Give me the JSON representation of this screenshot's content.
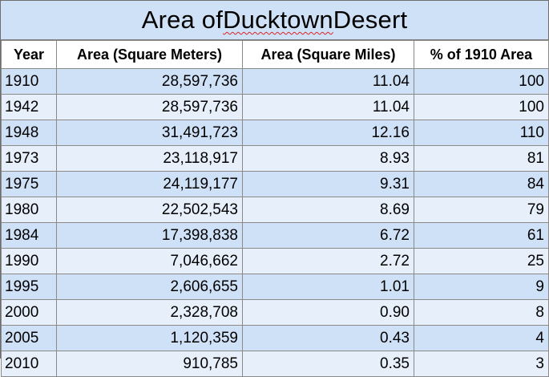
{
  "title_prefix": "Area of ",
  "title_squiggle": "Ducktown",
  "title_suffix": " Desert",
  "columns": [
    "Year",
    "Area (Square Meters)",
    "Area (Square Miles)",
    "% of 1910 Area"
  ],
  "rows": [
    [
      "1910",
      "28,597,736",
      "11.04",
      "100"
    ],
    [
      "1942",
      "28,597,736",
      "11.04",
      "100"
    ],
    [
      "1948",
      "31,491,723",
      "12.16",
      "110"
    ],
    [
      "1973",
      "23,118,917",
      "8.93",
      "81"
    ],
    [
      "1975",
      "24,119,177",
      "9.31",
      "84"
    ],
    [
      "1980",
      "22,502,543",
      "8.69",
      "79"
    ],
    [
      "1984",
      "17,398,838",
      "6.72",
      "61"
    ],
    [
      "1990",
      "7,046,662",
      "2.72",
      "25"
    ],
    [
      "1995",
      "2,606,655",
      "1.01",
      "9"
    ],
    [
      "2000",
      "2,328,708",
      "0.90",
      "8"
    ],
    [
      "2005",
      "1,120,359",
      "0.43",
      "4"
    ],
    [
      "2010",
      "910,785",
      "0.35",
      "3"
    ]
  ],
  "colors": {
    "band_dark": "#cfe1f7",
    "band_light": "#e6effa",
    "header_bg": "#ffffff",
    "spellcheck_underline": "#d22222"
  }
}
